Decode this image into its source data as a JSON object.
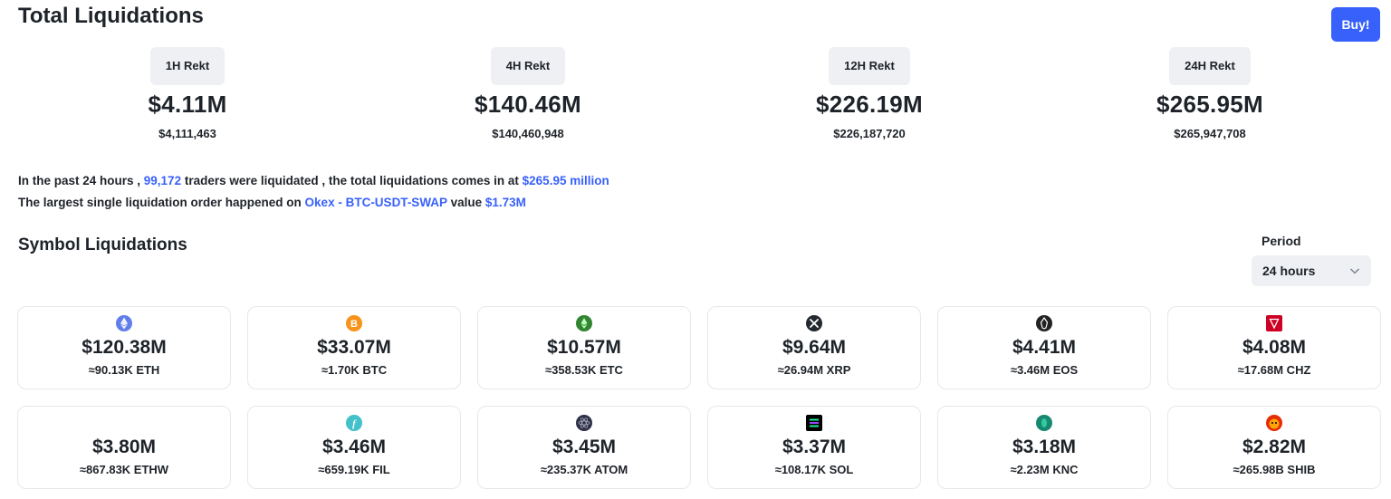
{
  "header": {
    "title": "Total Liquidations",
    "buy_label": "Buy!"
  },
  "rekt": [
    {
      "label": "1H Rekt",
      "short": "$4.11M",
      "full": "$4,111,463"
    },
    {
      "label": "4H Rekt",
      "short": "$140.46M",
      "full": "$140,460,948"
    },
    {
      "label": "12H Rekt",
      "short": "$226.19M",
      "full": "$226,187,720"
    },
    {
      "label": "24H Rekt",
      "short": "$265.95M",
      "full": "$265,947,708"
    }
  ],
  "summary": {
    "line1_a": "In the past 24 hours , ",
    "traders": "99,172",
    "line1_b": " traders were liquidated , the total liquidations comes in at ",
    "total": "$265.95 million",
    "line2_a": "The largest single liquidation order happened on ",
    "exchange": "Okex - BTC-USDT-SWAP",
    "line2_b": " value ",
    "value": "$1.73M"
  },
  "symbols": {
    "title": "Symbol Liquidations",
    "period_label": "Period",
    "period_value": "24 hours",
    "cards": [
      {
        "icon": "eth-icon",
        "color": "#627eea",
        "amount": "$120.38M",
        "qty": "≈90.13K ETH"
      },
      {
        "icon": "btc-icon",
        "color": "#f7931a",
        "amount": "$33.07M",
        "qty": "≈1.70K BTC"
      },
      {
        "icon": "etc-icon",
        "color": "#328332",
        "amount": "$10.57M",
        "qty": "≈358.53K ETC"
      },
      {
        "icon": "xrp-icon",
        "color": "#23292f",
        "amount": "$9.64M",
        "qty": "≈26.94M XRP"
      },
      {
        "icon": "eos-icon",
        "color": "#222222",
        "amount": "$4.41M",
        "qty": "≈3.46M EOS"
      },
      {
        "icon": "chz-icon",
        "color": "#cd0124",
        "amount": "$4.08M",
        "qty": "≈17.68M CHZ"
      },
      {
        "icon": "ethw-icon",
        "color": "#8a92b2",
        "amount": "$3.80M",
        "qty": "≈867.83K ETHW"
      },
      {
        "icon": "fil-icon",
        "color": "#42c1ca",
        "amount": "$3.46M",
        "qty": "≈659.19K FIL"
      },
      {
        "icon": "atom-icon",
        "color": "#2e3148",
        "amount": "$3.45M",
        "qty": "≈235.37K ATOM"
      },
      {
        "icon": "sol-icon",
        "color": "#000000",
        "amount": "$3.37M",
        "qty": "≈108.17K SOL"
      },
      {
        "icon": "knc-icon",
        "color": "#31cb9e",
        "amount": "$3.18M",
        "qty": "≈2.23M KNC"
      },
      {
        "icon": "shib-icon",
        "color": "#e42d04",
        "amount": "$2.82M",
        "qty": "≈265.98B SHIB"
      }
    ]
  }
}
